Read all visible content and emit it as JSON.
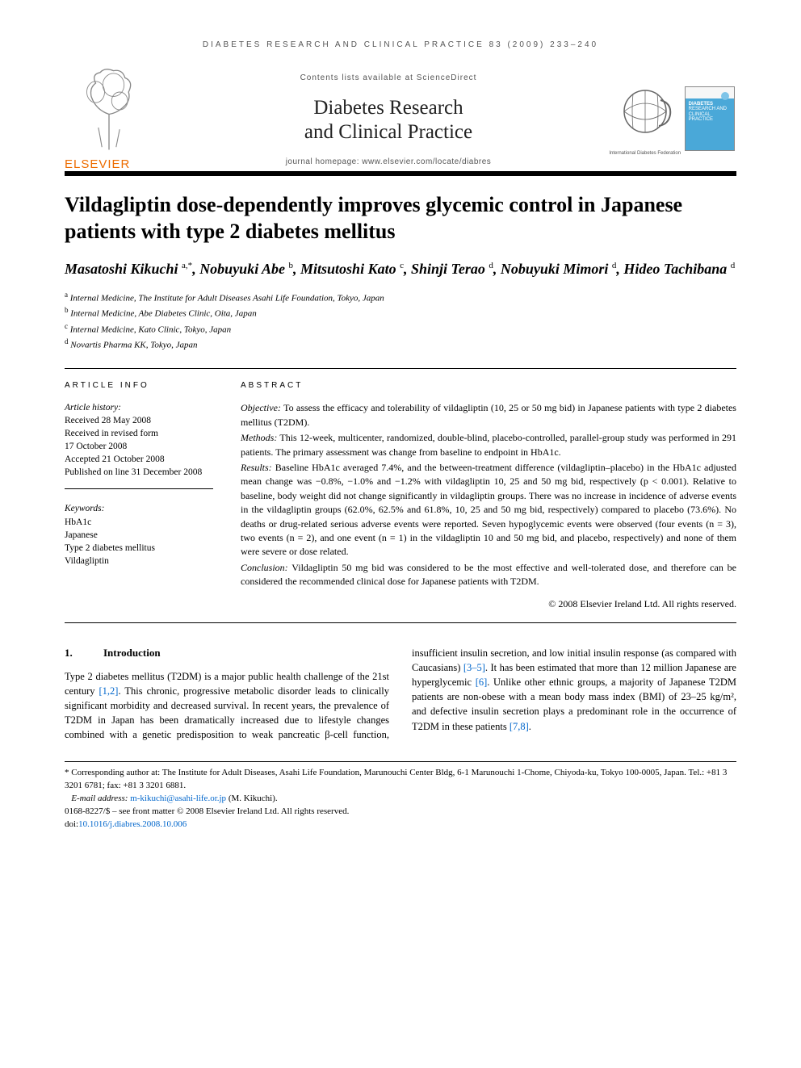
{
  "running_head": "DIABETES RESEARCH AND CLINICAL PRACTICE 83 (2009) 233–240",
  "masthead": {
    "publisher": "ELSEVIER",
    "contents_line": "Contents lists available at ScienceDirect",
    "journal_name_l1": "Diabetes Research",
    "journal_name_l2": "and Clinical Practice",
    "homepage": "journal homepage: www.elsevier.com/locate/diabres",
    "federation": "International Diabetes Federation",
    "cover_label_l1": "DIABETES",
    "cover_label_l2": "RESEARCH AND",
    "cover_label_l3": "CLINICAL PRACTICE",
    "colors": {
      "elsevier_orange": "#ed6c00",
      "cover_blue": "#4aa8d8",
      "rule_black": "#000000",
      "link_blue": "#0066cc"
    }
  },
  "title": "Vildagliptin dose-dependently improves glycemic control in Japanese patients with type 2 diabetes mellitus",
  "authors_html": "Masatoshi Kikuchi <sup>a,*</sup>, Nobuyuki Abe <sup>b</sup>, Mitsutoshi Kato <sup>c</sup>, Shinji Terao <sup>d</sup>, Nobuyuki Mimori <sup>d</sup>, Hideo Tachibana <sup>d</sup>",
  "affiliations": {
    "a": "Internal Medicine, The Institute for Adult Diseases Asahi Life Foundation, Tokyo, Japan",
    "b": "Internal Medicine, Abe Diabetes Clinic, Oita, Japan",
    "c": "Internal Medicine, Kato Clinic, Tokyo, Japan",
    "d": "Novartis Pharma KK, Tokyo, Japan"
  },
  "article_info": {
    "head": "ARTICLE INFO",
    "history_head": "Article history:",
    "received": "Received 28 May 2008",
    "revised_l1": "Received in revised form",
    "revised_l2": "17 October 2008",
    "accepted": "Accepted 21 October 2008",
    "published": "Published on line 31 December 2008",
    "kw_head": "Keywords:",
    "kw": [
      "HbA1c",
      "Japanese",
      "Type 2 diabetes mellitus",
      "Vildagliptin"
    ]
  },
  "abstract": {
    "head": "ABSTRACT",
    "objective": "To assess the efficacy and tolerability of vildagliptin (10, 25 or 50 mg bid) in Japanese patients with type 2 diabetes mellitus (T2DM).",
    "methods": "This 12-week, multicenter, randomized, double-blind, placebo-controlled, parallel-group study was performed in 291 patients. The primary assessment was change from baseline to endpoint in HbA1c.",
    "results": "Baseline HbA1c averaged 7.4%, and the between-treatment difference (vildagliptin–placebo) in the HbA1c adjusted mean change was −0.8%, −1.0% and −1.2% with vildagliptin 10, 25 and 50 mg bid, respectively (p < 0.001). Relative to baseline, body weight did not change significantly in vildagliptin groups. There was no increase in incidence of adverse events in the vildagliptin groups (62.0%, 62.5% and 61.8%, 10, 25 and 50 mg bid, respectively) compared to placebo (73.6%). No deaths or drug-related serious adverse events were reported. Seven hypoglycemic events were observed (four events (n = 3), two events (n = 2), and one event (n = 1) in the vildagliptin 10 and 50 mg bid, and placebo, respectively) and none of them were severe or dose related.",
    "conclusion": "Vildagliptin 50 mg bid was considered to be the most effective and well-tolerated dose, and therefore can be considered the recommended clinical dose for Japanese patients with T2DM.",
    "copyright": "© 2008 Elsevier Ireland Ltd. All rights reserved."
  },
  "body": {
    "sec1_num": "1.",
    "sec1_title": "Introduction",
    "col1": "Type 2 diabetes mellitus (T2DM) is a major public health challenge of the 21st century [1,2]. This chronic, progressive metabolic disorder leads to clinically significant morbidity and decreased survival. In recent years, the prevalence of T2DM in Japan has been dramatically increased due to lifestyle changes combined with a genetic predisposition to weak pancreatic",
    "col2": "β-cell function, insufficient insulin secretion, and low initial insulin response (as compared with Caucasians) [3–5]. It has been estimated that more than 12 million Japanese are hyperglycemic [6]. Unlike other ethnic groups, a majority of Japanese T2DM patients are non-obese with a mean body mass index (BMI) of 23–25 kg/m², and defective insulin secretion plays a predominant role in the occurrence of T2DM in these patients [7,8].",
    "refs_col1": "[1,2]",
    "refs_col2a": "[3–5]",
    "refs_col2b": "[6]",
    "refs_col2c": "[7,8]"
  },
  "footnotes": {
    "corr": "* Corresponding author at: The Institute for Adult Diseases, Asahi Life Foundation, Marunouchi Center Bldg, 6-1 Marunouchi 1-Chome, Chiyoda-ku, Tokyo 100-0005, Japan. Tel.: +81 3 3201 6781; fax: +81 3 3201 6881.",
    "email_label": "E-mail address:",
    "email": "m-kikuchi@asahi-life.or.jp",
    "email_who": "(M. Kikuchi).",
    "issn": "0168-8227/$ – see front matter © 2008 Elsevier Ireland Ltd. All rights reserved.",
    "doi_label": "doi:",
    "doi": "10.1016/j.diabres.2008.10.006"
  }
}
